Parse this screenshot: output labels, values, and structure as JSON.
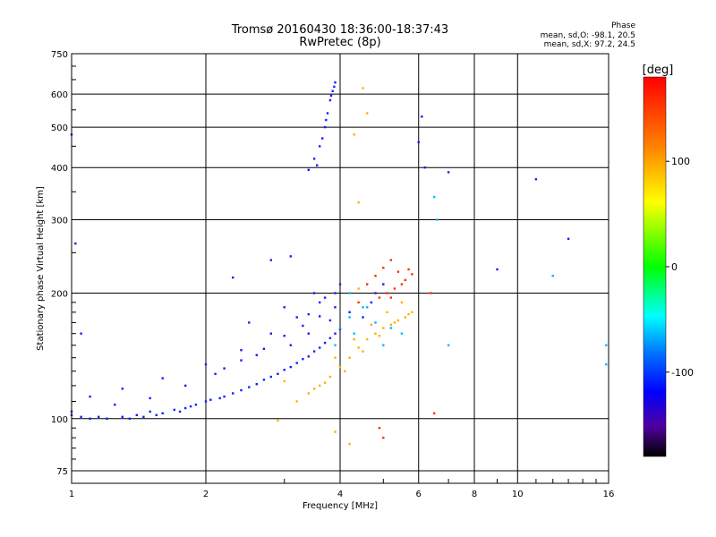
{
  "header": {
    "title_line1": "Tromsø 20160430 18:36:00-18:37:43",
    "title_line2": "RwPretec (8p)"
  },
  "phase_info": {
    "label": "Phase",
    "line_o": "mean, sd,O: -98.1, 20.5",
    "line_x": "mean, sd,X:  97.2, 24.5"
  },
  "chart_data": {
    "type": "scatter",
    "xlabel": "Frequency [MHz]",
    "ylabel": "Stationary phase Virtual Height [km]",
    "x_scale": "log",
    "y_scale": "log",
    "xlim": [
      1,
      16
    ],
    "ylim": [
      70,
      750
    ],
    "x_ticks": [
      1,
      2,
      4,
      6,
      8,
      10,
      16
    ],
    "x_tick_labels": [
      "1",
      "2",
      "4",
      "6",
      "8",
      "10",
      "16"
    ],
    "y_ticks": [
      75,
      100,
      200,
      300,
      400,
      500,
      600,
      750
    ],
    "y_tick_labels": [
      "75",
      "100",
      "200",
      "300",
      "400",
      "500",
      "600",
      "750"
    ],
    "grid": true,
    "colorbar": {
      "label": "[deg]",
      "range": [
        -180,
        180
      ],
      "ticks": [
        100,
        0,
        -100
      ],
      "tick_labels": [
        "100",
        "0",
        "-100"
      ]
    },
    "series": [
      {
        "points": [
          [
            1.0,
            104
          ],
          [
            1.05,
            101
          ],
          [
            1.1,
            100
          ],
          [
            1.15,
            101
          ],
          [
            1.2,
            100
          ],
          [
            1.3,
            101
          ],
          [
            1.4,
            102
          ],
          [
            1.5,
            104
          ],
          [
            1.6,
            103
          ],
          [
            1.7,
            105
          ],
          [
            1.8,
            106
          ],
          [
            1.9,
            108
          ],
          [
            2.0,
            110
          ],
          [
            2.2,
            113
          ],
          [
            2.4,
            117
          ],
          [
            2.6,
            121
          ],
          [
            2.8,
            126
          ],
          [
            3.0,
            131
          ],
          [
            3.2,
            136
          ],
          [
            3.4,
            141
          ],
          [
            3.6,
            148
          ],
          [
            3.8,
            156
          ],
          [
            4.0,
            164
          ],
          [
            1.25,
            108
          ],
          [
            1.5,
            112
          ],
          [
            1.8,
            120
          ],
          [
            2.1,
            128
          ],
          [
            2.4,
            138
          ],
          [
            2.7,
            147
          ],
          [
            3.0,
            158
          ],
          [
            3.3,
            167
          ],
          [
            3.6,
            176
          ],
          [
            3.9,
            185
          ],
          [
            1.3,
            118
          ],
          [
            1.6,
            125
          ],
          [
            2.0,
            135
          ],
          [
            2.4,
            146
          ],
          [
            2.8,
            160
          ],
          [
            3.2,
            175
          ],
          [
            3.6,
            190
          ],
          [
            3.9,
            200
          ],
          [
            2.5,
            170
          ],
          [
            3.0,
            185
          ],
          [
            3.5,
            200
          ],
          [
            3.4,
            178
          ],
          [
            3.7,
            195
          ],
          [
            4.0,
            210
          ],
          [
            1.1,
            113
          ],
          [
            1.05,
            160
          ],
          [
            1.02,
            263
          ],
          [
            1.0,
            480
          ],
          [
            2.3,
            218
          ],
          [
            2.8,
            240
          ],
          [
            3.1,
            245
          ],
          [
            3.4,
            395
          ],
          [
            3.5,
            420
          ],
          [
            3.6,
            450
          ],
          [
            3.7,
            500
          ],
          [
            3.75,
            540
          ],
          [
            3.8,
            580
          ],
          [
            3.85,
            610
          ],
          [
            3.9,
            640
          ],
          [
            6.1,
            530
          ],
          [
            6.0,
            460
          ],
          [
            6.2,
            400
          ],
          [
            7.0,
            390
          ],
          [
            9.0,
            228
          ],
          [
            11.0,
            375
          ],
          [
            13.0,
            270
          ],
          [
            1.0,
            102
          ],
          [
            1.35,
            100
          ],
          [
            1.45,
            101
          ],
          [
            1.55,
            102
          ],
          [
            1.75,
            104
          ],
          [
            1.85,
            107
          ],
          [
            2.05,
            111
          ],
          [
            2.15,
            112
          ],
          [
            2.3,
            115
          ],
          [
            2.5,
            119
          ],
          [
            2.7,
            124
          ],
          [
            2.9,
            128
          ],
          [
            3.1,
            133
          ],
          [
            3.3,
            139
          ],
          [
            3.5,
            145
          ],
          [
            3.7,
            152
          ],
          [
            3.9,
            160
          ],
          [
            2.2,
            132
          ],
          [
            2.6,
            142
          ],
          [
            3.1,
            150
          ],
          [
            3.4,
            160
          ],
          [
            3.8,
            172
          ],
          [
            4.2,
            180
          ],
          [
            4.5,
            175
          ],
          [
            4.7,
            190
          ],
          [
            4.8,
            200
          ],
          [
            5.0,
            210
          ],
          [
            3.55,
            405
          ],
          [
            3.65,
            470
          ],
          [
            3.72,
            520
          ],
          [
            3.82,
            595
          ],
          [
            3.88,
            625
          ]
        ]
      },
      {
        "points": [
          [
            3.2,
            110
          ],
          [
            3.4,
            115
          ],
          [
            3.6,
            120
          ],
          [
            3.8,
            126
          ],
          [
            4.0,
            133
          ],
          [
            4.2,
            140
          ],
          [
            4.4,
            148
          ],
          [
            4.6,
            155
          ],
          [
            4.8,
            160
          ],
          [
            5.0,
            165
          ],
          [
            5.2,
            168
          ],
          [
            5.4,
            172
          ],
          [
            5.6,
            175
          ],
          [
            5.8,
            180
          ],
          [
            3.9,
            140
          ],
          [
            4.3,
            155
          ],
          [
            4.7,
            168
          ],
          [
            5.1,
            180
          ],
          [
            5.5,
            190
          ],
          [
            4.1,
            130
          ],
          [
            4.5,
            145
          ],
          [
            4.9,
            158
          ],
          [
            5.3,
            170
          ],
          [
            5.7,
            178
          ],
          [
            3.5,
            118
          ],
          [
            3.7,
            122
          ],
          [
            4.4,
            205
          ],
          [
            4.6,
            540
          ],
          [
            4.5,
            620
          ],
          [
            4.3,
            480
          ],
          [
            4.4,
            330
          ],
          [
            4.2,
            87
          ],
          [
            3.9,
            93
          ],
          [
            3.0,
            123
          ],
          [
            2.9,
            99
          ]
        ]
      },
      {
        "points": [
          [
            4.4,
            190
          ],
          [
            4.6,
            210
          ],
          [
            4.8,
            220
          ],
          [
            5.0,
            230
          ],
          [
            5.2,
            240
          ],
          [
            5.4,
            225
          ],
          [
            5.6,
            215
          ],
          [
            5.3,
            205
          ],
          [
            5.5,
            210
          ],
          [
            4.9,
            195
          ],
          [
            5.1,
            200
          ],
          [
            5.7,
            228
          ],
          [
            5.8,
            222
          ],
          [
            4.9,
            95
          ],
          [
            5.0,
            90
          ],
          [
            6.5,
            103
          ],
          [
            6.4,
            200
          ],
          [
            5.2,
            195
          ]
        ]
      },
      {
        "points": [
          [
            4.2,
            175
          ],
          [
            4.5,
            185
          ],
          [
            4.8,
            170
          ],
          [
            5.2,
            165
          ],
          [
            5.5,
            160
          ],
          [
            4.0,
            165
          ],
          [
            3.9,
            150
          ],
          [
            4.3,
            160
          ],
          [
            5.0,
            150
          ],
          [
            6.5,
            340
          ],
          [
            6.6,
            300
          ],
          [
            7.0,
            150
          ],
          [
            12.0,
            220
          ],
          [
            15.8,
            150
          ],
          [
            15.8,
            135
          ],
          [
            4.2,
            200
          ],
          [
            4.6,
            185
          ]
        ]
      }
    ]
  }
}
